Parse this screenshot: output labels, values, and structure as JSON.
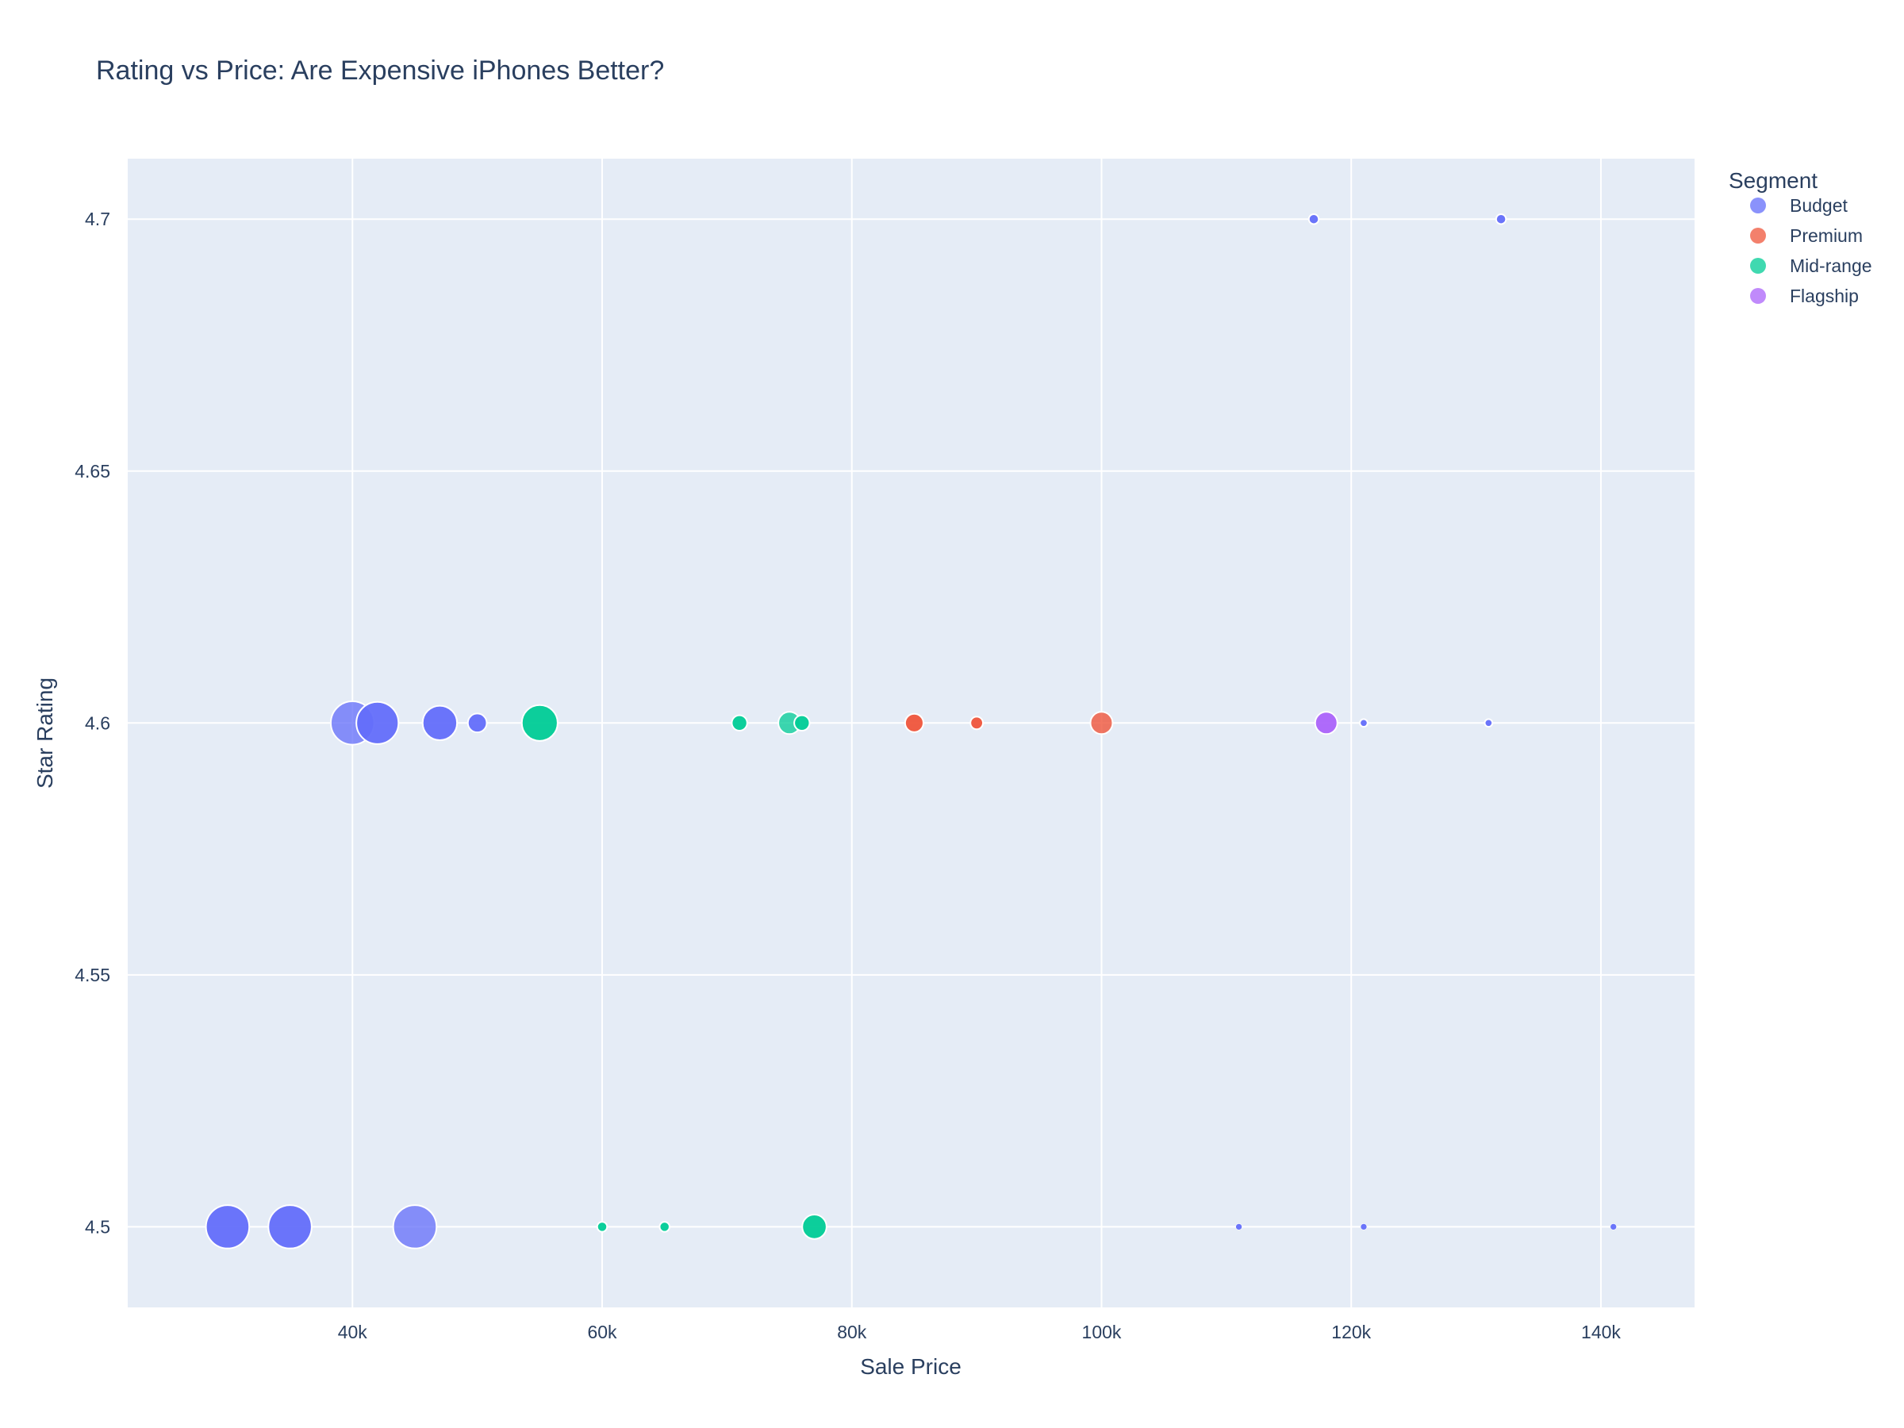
{
  "chart_data": {
    "type": "scatter",
    "title": "Rating vs Price: Are Expensive iPhones Better?",
    "xlabel": "Sale Price",
    "ylabel": "Star Rating",
    "xlim": [
      22000,
      147500
    ],
    "ylim": [
      4.484,
      4.712
    ],
    "x_ticks": [
      {
        "value": 40000,
        "label": "40k"
      },
      {
        "value": 60000,
        "label": "60k"
      },
      {
        "value": 80000,
        "label": "80k"
      },
      {
        "value": 100000,
        "label": "100k"
      },
      {
        "value": 120000,
        "label": "120k"
      },
      {
        "value": 140000,
        "label": "140k"
      }
    ],
    "y_ticks": [
      {
        "value": 4.5,
        "label": "4.5"
      },
      {
        "value": 4.55,
        "label": "4.55"
      },
      {
        "value": 4.6,
        "label": "4.6"
      },
      {
        "value": 4.65,
        "label": "4.65"
      },
      {
        "value": 4.7,
        "label": "4.7"
      }
    ],
    "grid": true,
    "legend": {
      "title": "Segment",
      "placement": "top-right outside"
    },
    "marker_size_encoding": "bubble size varies by point (relative size 0-1)",
    "series": [
      {
        "name": "Budget",
        "color": "#636efa",
        "points": [
          {
            "x": 30000,
            "y": 4.5,
            "size": 0.95
          },
          {
            "x": 35000,
            "y": 4.5,
            "size": 0.95
          },
          {
            "x": 45000,
            "y": 4.5,
            "size": 0.95,
            "opacity": 0.75
          },
          {
            "x": 40000,
            "y": 4.6,
            "size": 0.95,
            "opacity": 0.75
          },
          {
            "x": 42000,
            "y": 4.6,
            "size": 0.9
          },
          {
            "x": 47000,
            "y": 4.6,
            "size": 0.6
          },
          {
            "x": 50000,
            "y": 4.6,
            "size": 0.18
          },
          {
            "x": 111000,
            "y": 4.5,
            "size": 0.02
          },
          {
            "x": 121000,
            "y": 4.5,
            "size": 0.02
          },
          {
            "x": 141000,
            "y": 4.5,
            "size": 0.02
          },
          {
            "x": 121000,
            "y": 4.6,
            "size": 0.03
          },
          {
            "x": 131000,
            "y": 4.6,
            "size": 0.03
          },
          {
            "x": 117000,
            "y": 4.7,
            "size": 0.05
          },
          {
            "x": 132000,
            "y": 4.7,
            "size": 0.05
          }
        ]
      },
      {
        "name": "Premium",
        "color": "#ef553b",
        "points": [
          {
            "x": 85000,
            "y": 4.6,
            "size": 0.17
          },
          {
            "x": 90000,
            "y": 4.6,
            "size": 0.08
          },
          {
            "x": 100000,
            "y": 4.6,
            "size": 0.25,
            "opacity": 0.8
          }
        ]
      },
      {
        "name": "Mid-range",
        "color": "#00cc96",
        "points": [
          {
            "x": 55000,
            "y": 4.6,
            "size": 0.65
          },
          {
            "x": 71000,
            "y": 4.6,
            "size": 0.12
          },
          {
            "x": 75000,
            "y": 4.6,
            "size": 0.25,
            "opacity": 0.75
          },
          {
            "x": 76000,
            "y": 4.6,
            "size": 0.12
          },
          {
            "x": 60000,
            "y": 4.5,
            "size": 0.05
          },
          {
            "x": 65000,
            "y": 4.5,
            "size": 0.05
          },
          {
            "x": 77000,
            "y": 4.5,
            "size": 0.3
          }
        ]
      },
      {
        "name": "Flagship",
        "color": "#ab63fa",
        "points": [
          {
            "x": 118000,
            "y": 4.6,
            "size": 0.25
          }
        ]
      }
    ]
  }
}
